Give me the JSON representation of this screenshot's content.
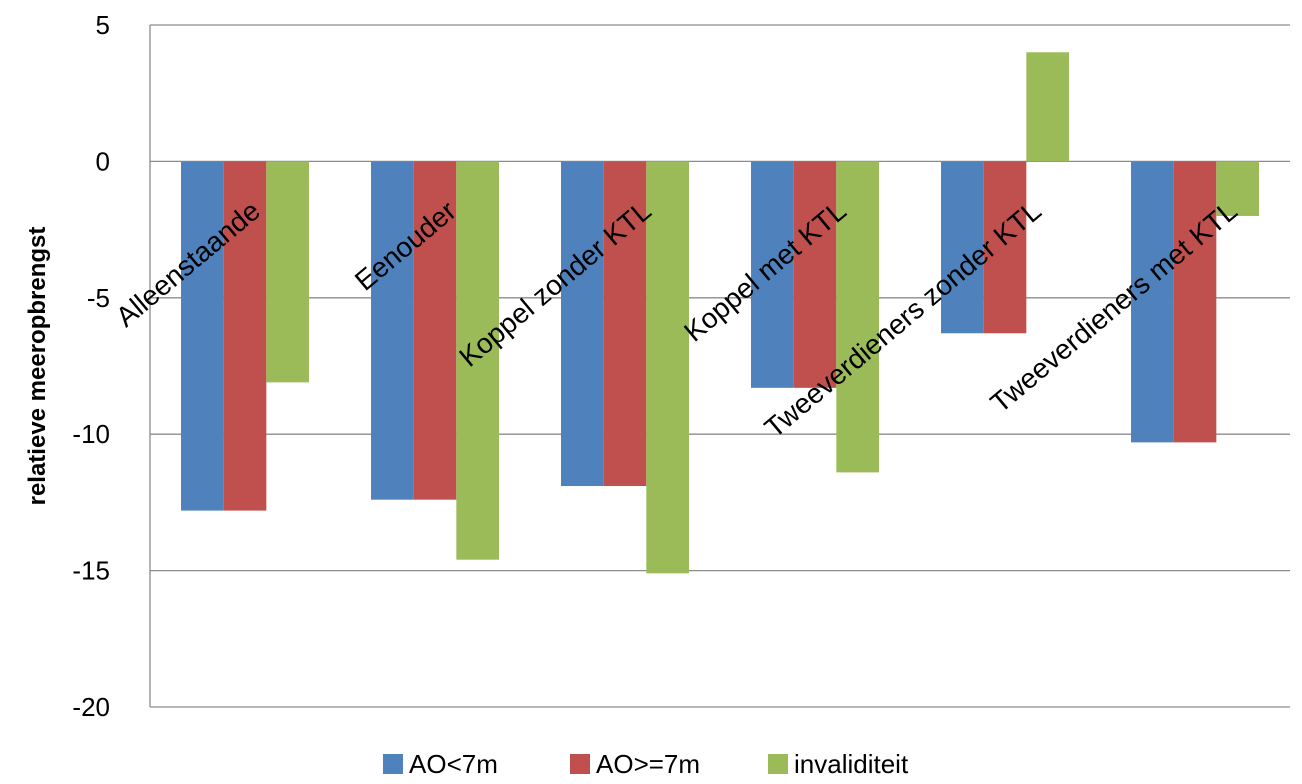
{
  "chart_data": {
    "type": "bar",
    "categories": [
      "Alleenstaande",
      "Eenouder",
      "Koppel zonder KTL",
      "Koppel met KTL",
      "Tweeverdieners zonder KTL",
      "Tweeverdieners met KTL"
    ],
    "series": [
      {
        "name": "AO<7m",
        "color": "#4F81BD",
        "values": [
          -12.8,
          -12.4,
          -11.9,
          -8.3,
          -6.3,
          -10.3
        ]
      },
      {
        "name": "AO>=7m",
        "color": "#C0504D",
        "values": [
          -12.8,
          -12.4,
          -11.9,
          -8.3,
          -6.3,
          -10.3
        ]
      },
      {
        "name": "invaliditeit",
        "color": "#9BBB59",
        "values": [
          -8.1,
          -14.6,
          -15.1,
          -11.4,
          4.0,
          -2.0
        ]
      }
    ],
    "title": "",
    "xlabel": "",
    "ylabel": "relatieve meeropbrengst",
    "ylim": [
      -20,
      5
    ],
    "yticks": [
      5,
      0,
      -5,
      -10,
      -15,
      -20
    ],
    "grid": true,
    "legend_position": "bottom"
  }
}
